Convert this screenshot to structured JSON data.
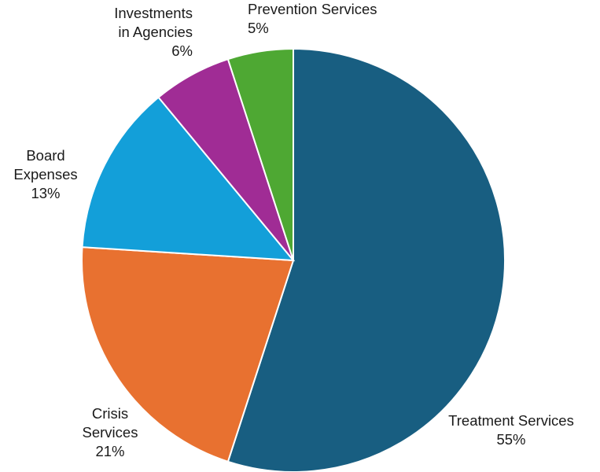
{
  "chart_data": {
    "type": "pie",
    "title": "",
    "slices": [
      {
        "name": "Treatment Services",
        "value": 55,
        "pct_label": "55%",
        "color": "#185e81",
        "label_lines": [
          "Treatment Services"
        ]
      },
      {
        "name": "Crisis Services",
        "value": 21,
        "pct_label": "21%",
        "color": "#e87130",
        "label_lines": [
          "Crisis",
          "Services"
        ]
      },
      {
        "name": "Board Expenses",
        "value": 13,
        "pct_label": "13%",
        "color": "#139fd9",
        "label_lines": [
          "Board",
          "Expenses"
        ]
      },
      {
        "name": "Investments in Agencies",
        "value": 6,
        "pct_label": "6%",
        "color": "#a02c95",
        "label_lines": [
          "Investments",
          "in Agencies"
        ]
      },
      {
        "name": "Prevention Services",
        "value": 5,
        "pct_label": "5%",
        "color": "#4ea833",
        "label_lines": [
          "Prevention Services"
        ]
      }
    ]
  }
}
